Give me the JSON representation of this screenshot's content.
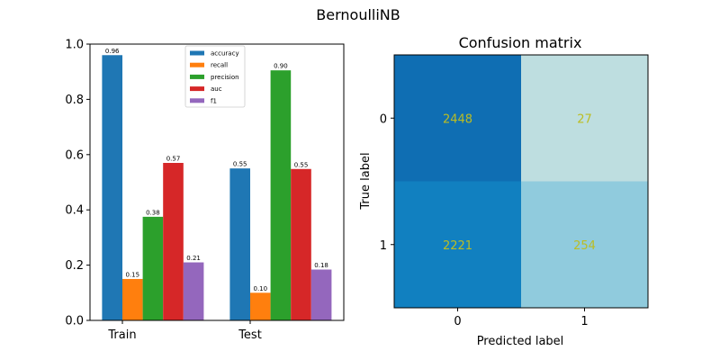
{
  "figure_title": "BernoulliNB",
  "chart_data": [
    {
      "type": "bar",
      "categories": [
        "Train",
        "Test"
      ],
      "ylim": [
        0,
        1.0
      ],
      "yticks": [
        "0.0",
        "0.2",
        "0.4",
        "0.6",
        "0.8",
        "1.0"
      ],
      "legend_position": "top-center",
      "series": [
        {
          "name": "accuracy",
          "color": "#1f77b4",
          "values": [
            0.96,
            0.55
          ],
          "labels": [
            "0.96",
            "0.55"
          ]
        },
        {
          "name": "recall",
          "color": "#ff7f0e",
          "values": [
            0.15,
            0.1
          ],
          "labels": [
            "0.15",
            "0.10"
          ]
        },
        {
          "name": "precision",
          "color": "#2ca02c",
          "values": [
            0.375,
            0.905
          ],
          "labels": [
            "0.38",
            "0.90"
          ]
        },
        {
          "name": "auc",
          "color": "#d62728",
          "values": [
            0.57,
            0.548
          ],
          "labels": [
            "0.57",
            "0.55"
          ]
        },
        {
          "name": "f1",
          "color": "#9467bd",
          "values": [
            0.21,
            0.184
          ],
          "labels": [
            "0.21",
            "0.18"
          ]
        }
      ]
    },
    {
      "type": "heatmap",
      "title": "Confusion matrix",
      "xlabel": "Predicted label",
      "ylabel": "True label",
      "x_ticks": [
        "0",
        "1"
      ],
      "y_ticks": [
        "0",
        "1"
      ],
      "text_color": "#bcbd22",
      "cells": [
        [
          {
            "value": "2448",
            "color": "#0f6eb3"
          },
          {
            "value": "27",
            "color": "#bedee0"
          }
        ],
        [
          {
            "value": "2221",
            "color": "#1180c0"
          },
          {
            "value": "254",
            "color": "#90cbdd"
          }
        ]
      ]
    }
  ]
}
